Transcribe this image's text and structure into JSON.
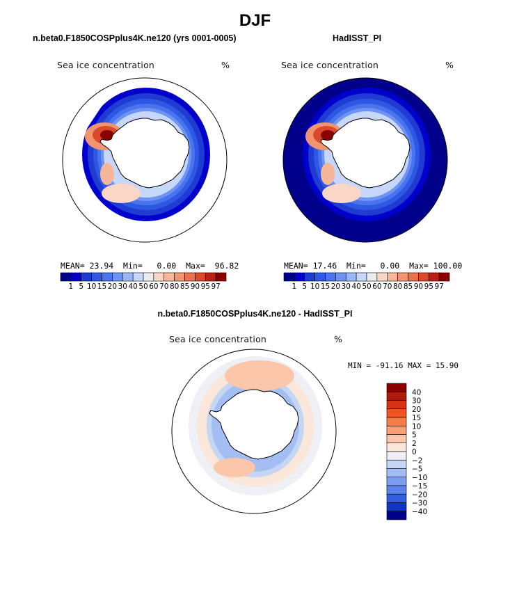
{
  "figure": {
    "season": "DJF",
    "field_label": "Sea ice concentration",
    "units": "%"
  },
  "panels": [
    {
      "title": "n.beta0.F1850COSPplus4K.ne120 (yrs 0001-0005)",
      "field_label": "Sea ice concentration",
      "units": "%",
      "stats": {
        "mean_label": "MEAN=",
        "mean": "23.94",
        "min_label": "Min=",
        "min": "0.00",
        "max_label": "Max=",
        "max": "96.82"
      }
    },
    {
      "title": "HadISST_PI",
      "field_label": "Sea ice concentration",
      "units": "%",
      "stats": {
        "mean_label": "MEAN=",
        "mean": "17.46",
        "min_label": "Min=",
        "min": "0.00",
        "max_label": "Max=",
        "max": "100.00"
      }
    },
    {
      "title": "n.beta0.F1850COSPplus4K.ne120 - HadISST_PI",
      "field_label": "Sea ice concentration",
      "units": "%",
      "stats": {
        "minmax": "MIN = -91.16 MAX =  15.90"
      }
    }
  ],
  "chart_data": [
    {
      "type": "heatmap",
      "title": "n.beta0.F1850COSPplus4K.ne120 (yrs 0001-0005)",
      "projection": "south-polar stereographic",
      "variable": "Sea ice concentration",
      "units": "%",
      "stats": {
        "mean": 23.94,
        "min": 0.0,
        "max": 96.82
      },
      "colorbar": {
        "orientation": "horizontal",
        "levels": [
          1,
          5,
          10,
          15,
          20,
          30,
          40,
          50,
          60,
          70,
          80,
          85,
          90,
          95,
          97
        ],
        "labels": [
          "1",
          "5",
          "10",
          "15",
          "20",
          "30",
          "40",
          "50",
          "60",
          "70",
          "80",
          "85",
          "90",
          "95",
          "97"
        ],
        "colors": [
          "#00008b",
          "#0000cd",
          "#1e3cd2",
          "#2e58e4",
          "#4a74ee",
          "#6d94f2",
          "#9ab6f5",
          "#c6d7fa",
          "#ececec",
          "#f9d6c6",
          "#f6b699",
          "#f19470",
          "#e8704a",
          "#d9492a",
          "#b82011",
          "#8b0000"
        ]
      }
    },
    {
      "type": "heatmap",
      "title": "HadISST_PI",
      "projection": "south-polar stereographic",
      "variable": "Sea ice concentration",
      "units": "%",
      "stats": {
        "mean": 17.46,
        "min": 0.0,
        "max": 100.0
      },
      "colorbar": {
        "orientation": "horizontal",
        "levels": [
          1,
          5,
          10,
          15,
          20,
          30,
          40,
          50,
          60,
          70,
          80,
          85,
          90,
          95,
          97
        ],
        "labels": [
          "1",
          "5",
          "10",
          "15",
          "20",
          "30",
          "40",
          "50",
          "60",
          "70",
          "80",
          "85",
          "90",
          "95",
          "97"
        ],
        "colors": [
          "#00008b",
          "#0000cd",
          "#1e3cd2",
          "#2e58e4",
          "#4a74ee",
          "#6d94f2",
          "#9ab6f5",
          "#c6d7fa",
          "#ececec",
          "#f9d6c6",
          "#f6b699",
          "#f19470",
          "#e8704a",
          "#d9492a",
          "#b82011",
          "#8b0000"
        ]
      }
    },
    {
      "type": "heatmap",
      "title": "n.beta0.F1850COSPplus4K.ne120 - HadISST_PI",
      "projection": "south-polar stereographic",
      "variable": "Sea ice concentration difference",
      "units": "%",
      "stats": {
        "min": -91.16,
        "max": 15.9
      },
      "colorbar": {
        "orientation": "vertical",
        "levels": [
          40,
          30,
          20,
          15,
          10,
          5,
          2,
          0,
          -2,
          -5,
          -10,
          -15,
          -20,
          -30,
          -40
        ],
        "labels": [
          "40",
          "30",
          "20",
          "15",
          "10",
          "5",
          "2",
          "0",
          "−2",
          "−5",
          "−10",
          "−15",
          "−20",
          "−30",
          "−40"
        ],
        "colors": [
          "#8b0000",
          "#b01a0a",
          "#d63215",
          "#f0541f",
          "#f77c48",
          "#f9a077",
          "#fbc6aa",
          "#fbe6da",
          "#eef0f6",
          "#c4d6f4",
          "#a3bef2",
          "#7b9ef0",
          "#5a82ed",
          "#3360e0",
          "#1034c4",
          "#00008b"
        ]
      }
    }
  ]
}
